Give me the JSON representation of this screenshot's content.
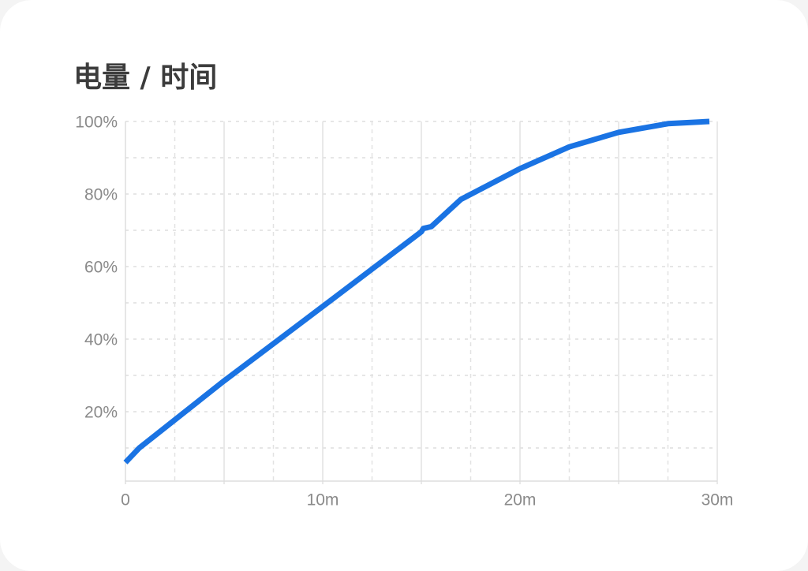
{
  "chart_data": {
    "type": "line",
    "title": "电量 / 时间",
    "x": [
      0,
      0.7,
      5,
      10,
      15,
      15.1,
      15.5,
      17,
      20,
      22.5,
      25,
      27.5,
      29.6
    ],
    "series": [
      {
        "color": "#1a73e3",
        "values": [
          6,
          10,
          28.5,
          49,
          69.6,
          70.5,
          71,
          78.5,
          87,
          93,
          97,
          99.4,
          100
        ]
      }
    ],
    "xlim": [
      0,
      30
    ],
    "ylim": [
      0,
      100
    ],
    "xticks": [
      0,
      {
        "value": 10,
        "label": "10m"
      },
      {
        "value": 20,
        "label": "20m"
      },
      {
        "value": 30,
        "label": "30m"
      }
    ],
    "yticks": [
      {
        "value": 20,
        "label": "20%"
      },
      {
        "value": 40,
        "label": "40%"
      },
      {
        "value": 60,
        "label": "60%"
      },
      {
        "value": 80,
        "label": "80%"
      },
      {
        "value": 100,
        "label": "100%"
      }
    ],
    "xgrid": [
      2.5,
      5,
      7.5,
      10,
      12.5,
      15,
      17.5,
      20,
      22.5,
      25,
      27.5,
      30
    ],
    "ygrid": [
      10,
      20,
      30,
      40,
      50,
      60,
      70,
      80,
      90,
      100
    ],
    "grid": true
  }
}
